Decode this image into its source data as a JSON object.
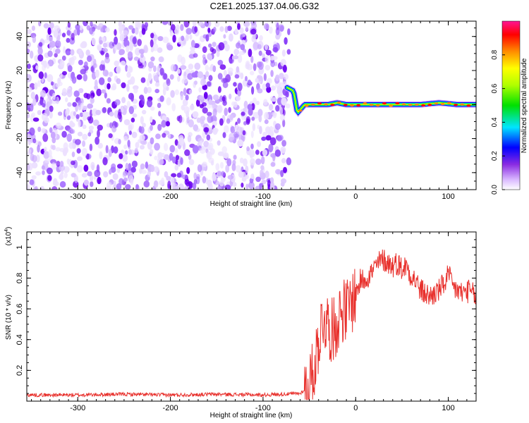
{
  "title": "C2E1.2025.137.04.06.G32",
  "chart_data": [
    {
      "type": "heatmap",
      "xlabel": "Height of straight line (km)",
      "ylabel": "Frequency (Hz)",
      "xlim": [
        -355,
        130
      ],
      "ylim": [
        -50,
        49
      ],
      "xticks": [
        -300,
        -200,
        -100,
        0,
        100
      ],
      "yticks": [
        -40,
        -20,
        0,
        20,
        40
      ],
      "noise_region_x": [
        -355,
        -72
      ],
      "signal_ridge": {
        "x": [
          -74,
          -67,
          -63,
          -55,
          -40,
          -30,
          -20,
          -10,
          0,
          10,
          30,
          50,
          70,
          90,
          110,
          130
        ],
        "frequency_hz": [
          10,
          8,
          -5,
          0,
          0,
          0,
          1,
          0,
          0,
          0,
          0,
          0,
          0,
          1,
          0,
          0
        ]
      },
      "colorbar": {
        "label": "Normalized spectral amplitude",
        "range": [
          0.0,
          1.0
        ],
        "ticks": [
          0.0,
          0.2,
          0.4,
          0.6,
          0.8
        ],
        "colors": [
          "#ffffff",
          "#8a4cf0",
          "#0000ff",
          "#00e5ff",
          "#00e000",
          "#ffff00",
          "#ff8c00",
          "#ff0000",
          "#ff1493"
        ]
      }
    },
    {
      "type": "line",
      "xlabel": "Height of straight line (km)",
      "ylabel": "SNR (10 * v/v)",
      "y_multiplier": "(x10",
      "y_multiplier_exp": "4",
      "xlim": [
        -355,
        130
      ],
      "ylim": [
        0,
        1.1
      ],
      "xticks": [
        -300,
        -200,
        -100,
        0,
        100
      ],
      "yticks": [
        0.2,
        0.4,
        0.6,
        0.8,
        1.0
      ],
      "color": "#e8302c",
      "series": [
        {
          "x": [
            -355,
            -300,
            -250,
            -200,
            -150,
            -100,
            -60,
            -50,
            -45,
            -40,
            -35,
            -30,
            -25,
            -20,
            -15,
            -10,
            -5,
            0,
            5,
            10,
            15,
            20,
            25,
            30,
            35,
            40,
            45,
            50,
            55,
            60,
            65,
            70,
            75,
            80,
            85,
            90,
            95,
            100,
            105,
            110,
            115,
            120,
            125,
            130
          ],
          "values": [
            0.04,
            0.04,
            0.045,
            0.04,
            0.045,
            0.04,
            0.05,
            0.1,
            0.2,
            0.4,
            0.55,
            0.5,
            0.45,
            0.52,
            0.6,
            0.58,
            0.64,
            0.7,
            0.78,
            0.8,
            0.82,
            0.86,
            0.9,
            0.92,
            0.9,
            0.88,
            0.9,
            0.86,
            0.88,
            0.82,
            0.78,
            0.72,
            0.7,
            0.68,
            0.7,
            0.72,
            0.76,
            0.82,
            0.74,
            0.72,
            0.7,
            0.72,
            0.7,
            0.68
          ]
        }
      ]
    }
  ]
}
